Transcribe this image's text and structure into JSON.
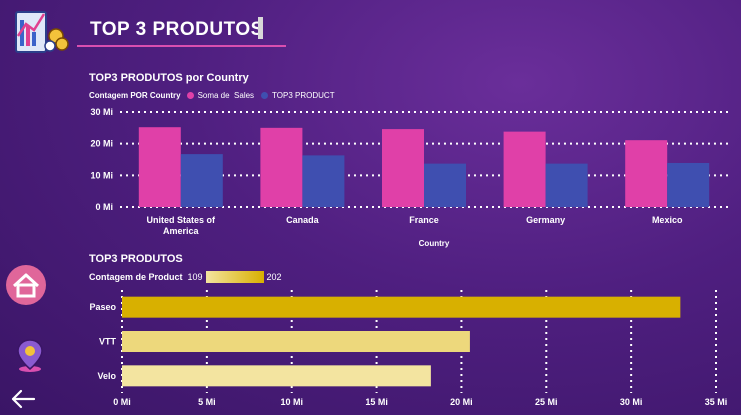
{
  "header": {
    "title": "TOP 3 PRODUTOS"
  },
  "colors": {
    "series1": "#e040a8",
    "series2": "#3f4fb0",
    "bar_high": "#d8b000",
    "bar_low": "#f3e4a0",
    "gridline": "#ffffff"
  },
  "nav": {
    "icons": [
      "home-icon",
      "location-pin-icon",
      "back-arrow-icon"
    ]
  },
  "chart_data": [
    {
      "type": "bar",
      "title": "TOP3 PRODUTOS por Country",
      "legend_title": "Contagem POR Country",
      "legend_position": "top-left",
      "xlabel": "Country",
      "ylabel": "",
      "categories": [
        "United States of America",
        "Canada",
        "France",
        "Germany",
        "Mexico"
      ],
      "category_labels": [
        [
          "United States of",
          "America"
        ],
        [
          "Canada"
        ],
        [
          "France"
        ],
        [
          "Germany"
        ],
        [
          "Mexico"
        ]
      ],
      "series": [
        {
          "name": "Soma de  Sales",
          "values": [
            25.2,
            25.0,
            24.6,
            23.8,
            21.1
          ]
        },
        {
          "name": "TOP3 PRODUCT",
          "values": [
            16.7,
            16.3,
            13.7,
            13.7,
            13.9
          ]
        }
      ],
      "ylim": [
        0,
        30
      ],
      "yticks": [
        0,
        10,
        20,
        30
      ],
      "ytick_labels": [
        "0 Mi",
        "10 Mi",
        "20 Mi",
        "30 Mi"
      ],
      "grid": true
    },
    {
      "type": "bar",
      "orientation": "horizontal",
      "title": "TOP3 PRODUTOS",
      "legend_title": "Contagem de Product",
      "legend_min": "109",
      "legend_max": "202",
      "categories": [
        "Paseo",
        "VTT",
        "Velo"
      ],
      "values": [
        32.9,
        20.5,
        18.2
      ],
      "color_values": [
        202,
        130,
        109
      ],
      "xlim": [
        0,
        35
      ],
      "xticks": [
        0,
        5,
        10,
        15,
        20,
        25,
        30,
        35
      ],
      "xtick_labels": [
        "0 Mi",
        "5 Mi",
        "10 Mi",
        "15 Mi",
        "20 Mi",
        "25 Mi",
        "30 Mi",
        "35 Mi"
      ],
      "grid": true
    }
  ]
}
